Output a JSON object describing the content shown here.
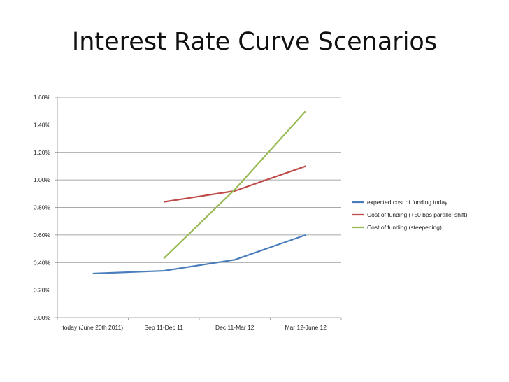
{
  "slide": {
    "title": "Interest Rate Curve Scenarios"
  },
  "chart_data": {
    "type": "line",
    "title": "",
    "xlabel": "",
    "ylabel": "",
    "categories": [
      "today (June 20th 2011)",
      "Sep 11-Dec 11",
      "Dec 11-Mar 12",
      "Mar 12-June 12"
    ],
    "ylim": [
      0,
      0.016
    ],
    "yticks": [
      "0.00%",
      "0.20%",
      "0.40%",
      "0.60%",
      "0.80%",
      "1.00%",
      "1.20%",
      "1.40%",
      "1.60%"
    ],
    "grid": true,
    "legend_position": "right",
    "series": [
      {
        "name": "expected cost of funding today",
        "color": "#4a7ebb",
        "values": [
          0.0032,
          0.0034,
          0.0042,
          0.006
        ]
      },
      {
        "name": "Cost of funding (+50 bps parallel shift)",
        "color": "#be4b48",
        "values": [
          null,
          0.0084,
          0.0092,
          0.011
        ]
      },
      {
        "name": "Cost of funding (steepening)",
        "color": "#98b954",
        "values": [
          null,
          0.0043,
          0.0093,
          0.015
        ]
      }
    ]
  }
}
